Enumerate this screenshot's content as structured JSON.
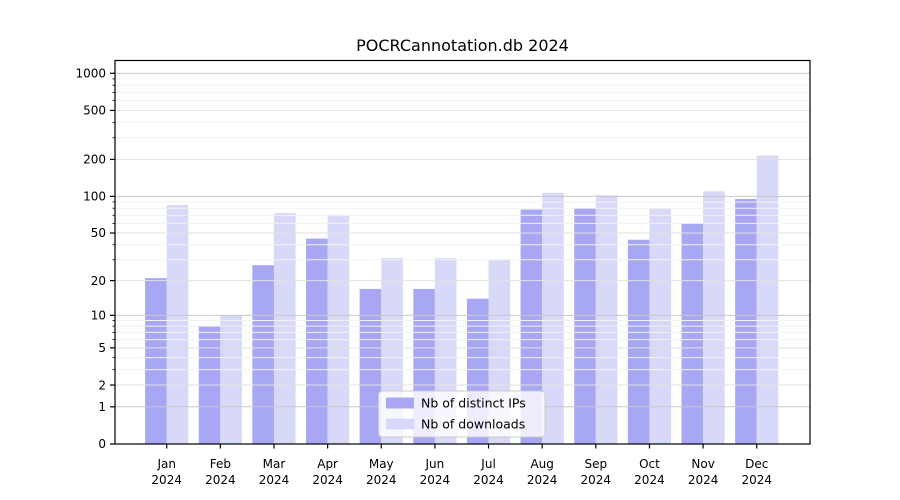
{
  "chart_data": {
    "type": "bar",
    "title": "POCRCannotation.db 2024",
    "xlabel": "",
    "ylabel": "",
    "yscale": "symlog",
    "ylim": [
      0,
      1270
    ],
    "yticks": [
      0,
      1,
      2,
      5,
      10,
      20,
      50,
      100,
      200,
      500,
      1000
    ],
    "grid": true,
    "legend_position": "lower center",
    "categories": [
      "Jan",
      "Feb",
      "Mar",
      "Apr",
      "May",
      "Jun",
      "Jul",
      "Aug",
      "Sep",
      "Oct",
      "Nov",
      "Dec"
    ],
    "category_year": "2024",
    "series": [
      {
        "name": "Nb of distinct IPs",
        "color": "#a7a7f4",
        "values": [
          21,
          8,
          27,
          45,
          17,
          17,
          14,
          78,
          80,
          44,
          60,
          95
        ]
      },
      {
        "name": "Nb of downloads",
        "color": "#d8d8f8",
        "values": [
          85,
          10,
          73,
          70,
          31,
          31,
          30,
          107,
          102,
          80,
          110,
          215
        ]
      }
    ]
  }
}
